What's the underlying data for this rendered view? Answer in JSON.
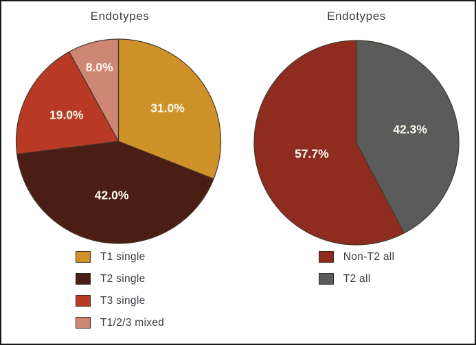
{
  "figure": {
    "background": "#ffffff",
    "border_color": "#1a1a1a",
    "title_color": "#3b3b42",
    "percent_label_color": "#fdf8ee",
    "slice_outline_color": "#44372c"
  },
  "chart_data": [
    {
      "type": "pie",
      "title": "Endotypes",
      "clockwise": true,
      "start_angle_deg": 0,
      "legend_position": "bottom",
      "slices": [
        {
          "label": "T1 single",
          "value": 31.0,
          "display": "31.0%",
          "color": "#ce9228"
        },
        {
          "label": "T2 single",
          "value": 42.0,
          "display": "42.0%",
          "color": "#4a1e15"
        },
        {
          "label": "T3 single",
          "value": 19.0,
          "display": "19.0%",
          "color": "#b93a24"
        },
        {
          "label": "T1/2/3 mixed",
          "value": 8.0,
          "display": "8.0%",
          "color": "#ce8773"
        }
      ]
    },
    {
      "type": "pie",
      "title": "Endotypes",
      "clockwise": false,
      "start_angle_deg": 0,
      "legend_position": "bottom",
      "slices": [
        {
          "label": "Non-T2 all",
          "value": 57.7,
          "display": "57.7%",
          "color": "#8e2d1f"
        },
        {
          "label": "T2 all",
          "value": 42.3,
          "display": "42.3%",
          "color": "#5b5b5b"
        }
      ]
    }
  ]
}
